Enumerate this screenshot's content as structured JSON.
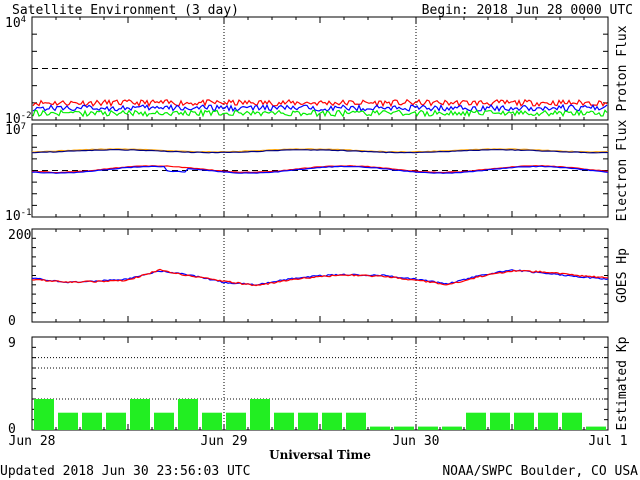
{
  "header": {
    "title": "Satellite Environment (3 day)",
    "begin": "Begin:  2018 Jun 28 0000 UTC"
  },
  "footer": {
    "updated": "Updated 2018 Jun 30 23:56:03 UTC",
    "credit": "NOAA/SWPC Boulder, CO USA"
  },
  "colors": {
    "red": "#ff0000",
    "blue": "#0000ff",
    "green": "#00ee00",
    "orange": "#ffa500",
    "navy": "#000080",
    "kp_bar": "#22ee22"
  },
  "chart_data": [
    {
      "type": "line",
      "panel": "proton",
      "ylabel": "Proton Flux",
      "yscale": "log",
      "ylim": [
        0.01,
        10000
      ],
      "ytick_labels": [
        {
          "base": "10",
          "exp": "4"
        },
        {
          "base": "10",
          "exp": "-2"
        }
      ],
      "threshold": 10,
      "series": [
        {
          "color": "red",
          "approx_value": 0.1
        },
        {
          "color": "blue",
          "approx_value": 0.05
        },
        {
          "color": "green",
          "approx_value": 0.025
        }
      ]
    },
    {
      "type": "line",
      "panel": "electron",
      "ylabel": "Electron Flux",
      "yscale": "log",
      "ylim": [
        0.1,
        10000000
      ],
      "ytick_labels": [
        {
          "base": "10",
          "exp": "7"
        },
        {
          "base": "10",
          "exp": "-1"
        }
      ],
      "threshold": 1000,
      "series": [
        {
          "color": "orange",
          "approx_range": [
            40000,
            70000
          ]
        },
        {
          "color": "navy",
          "approx_range": [
            35000,
            60000
          ]
        },
        {
          "color": "red",
          "approx_range": [
            700,
            2500
          ]
        },
        {
          "color": "blue",
          "approx_range": [
            600,
            2200
          ]
        }
      ]
    },
    {
      "type": "line",
      "panel": "hp",
      "ylabel": "GOES Hp",
      "ylim": [
        0,
        200
      ],
      "ytick_labels": [
        "200",
        "0"
      ],
      "x_hours": [
        0,
        4,
        8,
        12,
        16,
        20,
        24,
        28,
        32,
        36,
        40,
        44,
        48,
        52,
        56,
        60,
        64,
        68,
        72
      ],
      "series": [
        {
          "color": "blue",
          "values": [
            95,
            85,
            88,
            92,
            110,
            100,
            85,
            80,
            92,
            100,
            102,
            100,
            92,
            82,
            100,
            112,
            105,
            98,
            92
          ]
        },
        {
          "color": "red",
          "values": [
            92,
            86,
            87,
            90,
            112,
            98,
            88,
            78,
            90,
            98,
            101,
            98,
            90,
            80,
            98,
            110,
            108,
            100,
            95
          ]
        }
      ]
    },
    {
      "type": "bar",
      "panel": "kp",
      "ylabel": "Estimated Kp",
      "ylim": [
        0,
        9
      ],
      "ytick_labels": [
        "9",
        "0"
      ],
      "gridlines": [
        3,
        6,
        7
      ],
      "interval_hours": 3,
      "values": [
        3,
        1.67,
        1.67,
        1.67,
        3,
        1.67,
        3,
        1.67,
        1.67,
        3,
        1.67,
        1.67,
        1.67,
        1.67,
        0.33,
        0.33,
        0.33,
        0.33,
        1.67,
        1.67,
        1.67,
        1.67,
        1.67,
        0.33
      ]
    }
  ],
  "x_axis": {
    "label": "Universal Time",
    "tick_labels": [
      "Jun 28",
      "Jun 29",
      "Jun 30",
      "Jul 1"
    ]
  }
}
